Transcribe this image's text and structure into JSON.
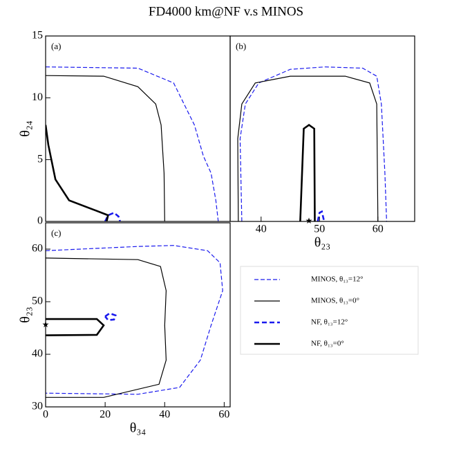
{
  "title": "FD4000 km@NF v.s MINOS",
  "chart_data": [
    {
      "type": "line",
      "panel_label": "(a)",
      "ylabel": "θ₂₄",
      "xlim": [
        0,
        62
      ],
      "ylim": [
        0,
        15
      ],
      "yticks": [
        0,
        5,
        10,
        15
      ],
      "series": [
        {
          "name": "MINOS, θ₁₃=12°",
          "color": "#1a1aee",
          "dashed": true,
          "thick": false,
          "x": [
            0,
            31,
            43,
            50,
            53,
            55.6,
            57.2,
            58
          ],
          "y": [
            12.5,
            12.4,
            11.2,
            7.8,
            5.3,
            3.9,
            1.7,
            0
          ]
        },
        {
          "name": "MINOS, θ₁₃=0°",
          "color": "#000000",
          "dashed": false,
          "thick": false,
          "x": [
            0,
            19.5,
            31,
            37,
            38.8,
            39.8,
            40
          ],
          "y": [
            11.8,
            11.75,
            10.9,
            9.5,
            7.8,
            3.9,
            0
          ]
        },
        {
          "name": "NF, θ₁₃=12°",
          "color": "#1a1aee",
          "dashed": true,
          "thick": true,
          "x": [
            20,
            21,
            23,
            24.5,
            25
          ],
          "y": [
            0,
            0.5,
            0.7,
            0.4,
            0
          ]
        },
        {
          "name": "NF, θ₁₃=0°",
          "color": "#000000",
          "dashed": false,
          "thick": true,
          "x": [
            0,
            0.9,
            3.3,
            7.9,
            17.2,
            21,
            20.5
          ],
          "y": [
            7.8,
            6.2,
            3.4,
            1.7,
            0.85,
            0.5,
            0
          ]
        }
      ]
    },
    {
      "type": "line",
      "panel_label": "(b)",
      "xlabel": "θ₂₃",
      "xlim": [
        34.7,
        66.3
      ],
      "ylim": [
        0,
        15
      ],
      "xticks": [
        40,
        50,
        60
      ],
      "star": {
        "x": 48.2,
        "y": 0
      },
      "series": [
        {
          "color": "#1a1aee",
          "dashed": true,
          "thick": false,
          "x": [
            36.7,
            36.4,
            37.3,
            39.6,
            45,
            50.9,
            57.4,
            59.8,
            60.6,
            61.2,
            61.5
          ],
          "y": [
            0,
            6.7,
            9.5,
            11.2,
            12.3,
            12.5,
            12.4,
            11.75,
            9.5,
            3.9,
            0
          ]
        },
        {
          "color": "#000000",
          "dashed": false,
          "thick": false,
          "x": [
            36.1,
            36,
            36.7,
            39,
            45,
            54.4,
            58.6,
            59.8,
            60
          ],
          "y": [
            0,
            6.7,
            9.5,
            11.2,
            11.75,
            11.75,
            11.2,
            9.5,
            0
          ]
        },
        {
          "color": "#1a1aee",
          "dashed": true,
          "thick": true,
          "x": [
            49.7,
            50,
            50.4,
            50.8
          ],
          "y": [
            0,
            0.7,
            0.8,
            0
          ]
        },
        {
          "color": "#000000",
          "dashed": false,
          "thick": true,
          "x": [
            46.7,
            47.3,
            48.2,
            49.1,
            49.2
          ],
          "y": [
            0,
            7.5,
            7.8,
            7.5,
            0
          ]
        }
      ]
    },
    {
      "type": "line",
      "panel_label": "(c)",
      "xlabel": "θ₃₄",
      "ylabel": "θ₂₃",
      "xlim": [
        0,
        62
      ],
      "ylim": [
        30,
        65
      ],
      "xticks": [
        0,
        20,
        40,
        60
      ],
      "yticks": [
        30,
        40,
        50,
        60
      ],
      "star": {
        "x": 0,
        "y": 45.5
      },
      "series": [
        {
          "color": "#1a1aee",
          "dashed": true,
          "thick": false,
          "x": [
            0,
            31,
            43,
            54.4,
            58.6,
            59.5,
            55.6,
            52,
            45,
            31,
            0
          ],
          "y": [
            59.7,
            60.5,
            60.7,
            59.7,
            57.4,
            52.1,
            45.5,
            38.9,
            33.7,
            32.4,
            32.6
          ]
        },
        {
          "color": "#000000",
          "dashed": false,
          "thick": false,
          "x": [
            0,
            31,
            38.6,
            40.5,
            40,
            40.5,
            38.1,
            19.5,
            0
          ],
          "y": [
            58.3,
            58,
            56.7,
            52.1,
            45.5,
            38.9,
            34.3,
            31.8,
            31.8
          ]
        },
        {
          "color": "#1a1aee",
          "dashed": true,
          "thick": true,
          "x": [
            20,
            21.5,
            23.5,
            23,
            21,
            20
          ],
          "y": [
            47.2,
            47.8,
            47.4,
            46.6,
            46.5,
            47.2
          ]
        },
        {
          "color": "#000000",
          "dashed": false,
          "thick": true,
          "x": [
            0,
            17.2,
            19.5,
            17.2,
            0
          ],
          "y": [
            46.7,
            46.7,
            45.5,
            43.7,
            43.6
          ]
        }
      ]
    }
  ]
}
